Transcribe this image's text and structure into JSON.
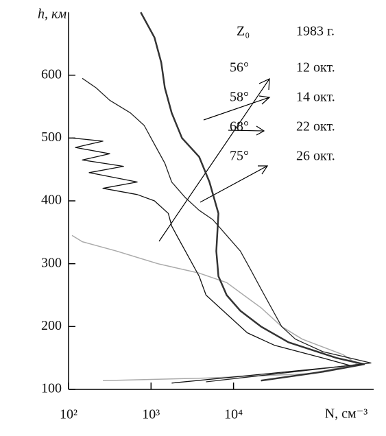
{
  "chart_data": {
    "type": "line",
    "log_x": true,
    "y_label": "h, км",
    "x_label": "N, см⁻³",
    "legend_header": [
      "Z₀",
      "1983 г."
    ],
    "xlim": [
      100,
      500000
    ],
    "ylim": [
      100,
      700
    ],
    "xticks": [
      {
        "value": 100,
        "label": "10²"
      },
      {
        "value": 1000,
        "label": "10³"
      },
      {
        "value": 10000,
        "label": "10⁴"
      }
    ],
    "yticks": [
      100,
      200,
      300,
      400,
      500,
      600
    ],
    "series": [
      {
        "name": "56°",
        "date": "12 окт.",
        "color": "#aaaaaa",
        "width": 1.5,
        "x": [
          261,
          4640,
          82500,
          316000,
          215000,
          68000,
          38300,
          21500,
          13300,
          8250,
          3830,
          1210,
          383,
          147,
          110
        ],
        "values": [
          114,
          118,
          125,
          140,
          155,
          180,
          200,
          230,
          250,
          270,
          285,
          300,
          320,
          335,
          345
        ]
      },
      {
        "name": "58°",
        "date": "14 окт.",
        "color": "#333333",
        "width": 2.5,
        "x": [
          21500,
          121000,
          383000,
          178000,
          46400,
          21500,
          12100,
          8250,
          6560,
          6190,
          6560,
          5110,
          3830,
          2370,
          1780,
          1470,
          1330,
          1100,
          750
        ],
        "values": [
          114,
          128,
          140,
          150,
          175,
          200,
          225,
          250,
          280,
          320,
          380,
          430,
          470,
          500,
          540,
          580,
          620,
          660,
          700
        ]
      },
      {
        "name": "68°",
        "date": "22 окт.",
        "color": "#111111",
        "width": 1.3,
        "x": [
          1780,
          261000,
          121000,
          31600,
          14700,
          8250,
          4640,
          3830,
          2610,
          2150,
          1780,
          1620,
          1100,
          681,
          261,
          681,
          178,
          464,
          147,
          316,
          121,
          261,
          110
        ],
        "values": [
          110,
          138,
          150,
          170,
          190,
          220,
          250,
          280,
          320,
          340,
          360,
          380,
          400,
          410,
          420,
          430,
          445,
          455,
          465,
          475,
          485,
          495,
          500
        ]
      },
      {
        "name": "75°",
        "date": "26 окт.",
        "color": "#222222",
        "width": 1.3,
        "x": [
          4640,
          464000,
          121000,
          56200,
          38300,
          28700,
          21500,
          16200,
          12100,
          8250,
          5620,
          3830,
          2610,
          1780,
          1470,
          1100,
          826,
          562,
          316,
          215,
          147
        ],
        "values": [
          112,
          142,
          160,
          180,
          200,
          230,
          260,
          290,
          320,
          345,
          370,
          385,
          405,
          430,
          460,
          490,
          520,
          540,
          560,
          580,
          595
        ]
      }
    ]
  }
}
